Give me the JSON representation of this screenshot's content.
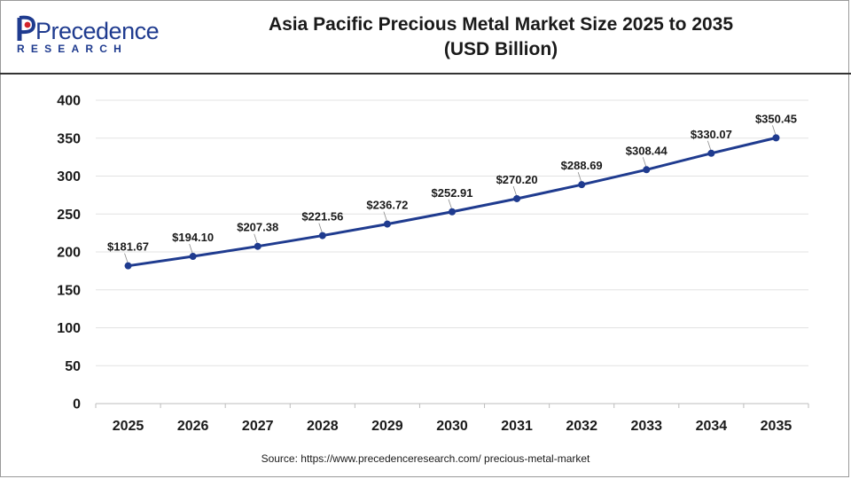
{
  "brand": {
    "name": "Precedence",
    "sub": "RESEARCH",
    "colors": {
      "blue": "#1f3b8f",
      "red": "#d2232a"
    }
  },
  "title_line1": "Asia Pacific Precious Metal Market Size 2025 to 2035",
  "title_line2": "(USD Billion)",
  "source": "Source: https://www.precedenceresearch.com/ precious-metal-market",
  "chart_data": {
    "type": "line",
    "title": "Asia Pacific Precious Metal Market Size 2025 to 2035 (USD Billion)",
    "xlabel": "",
    "ylabel": "",
    "categories": [
      "2025",
      "2026",
      "2027",
      "2028",
      "2029",
      "2030",
      "2031",
      "2032",
      "2033",
      "2034",
      "2035"
    ],
    "series": [
      {
        "values": [
          181.67,
          194.1,
          207.38,
          221.56,
          236.72,
          252.91,
          270.2,
          288.69,
          308.44,
          330.07,
          350.45
        ],
        "labels": [
          "$181.67",
          "$194.10",
          "$207.38",
          "$221.56",
          "$236.72",
          "$252.91",
          "$270.20",
          "$288.69",
          "$308.44",
          "$330.07",
          "$350.45"
        ],
        "color": "#1f3b8f"
      }
    ],
    "ylim": [
      0,
      400
    ],
    "yticks": [
      "0",
      "50",
      "100",
      "150",
      "200",
      "250",
      "300",
      "350",
      "400"
    ],
    "grid": true,
    "legend": "none"
  }
}
